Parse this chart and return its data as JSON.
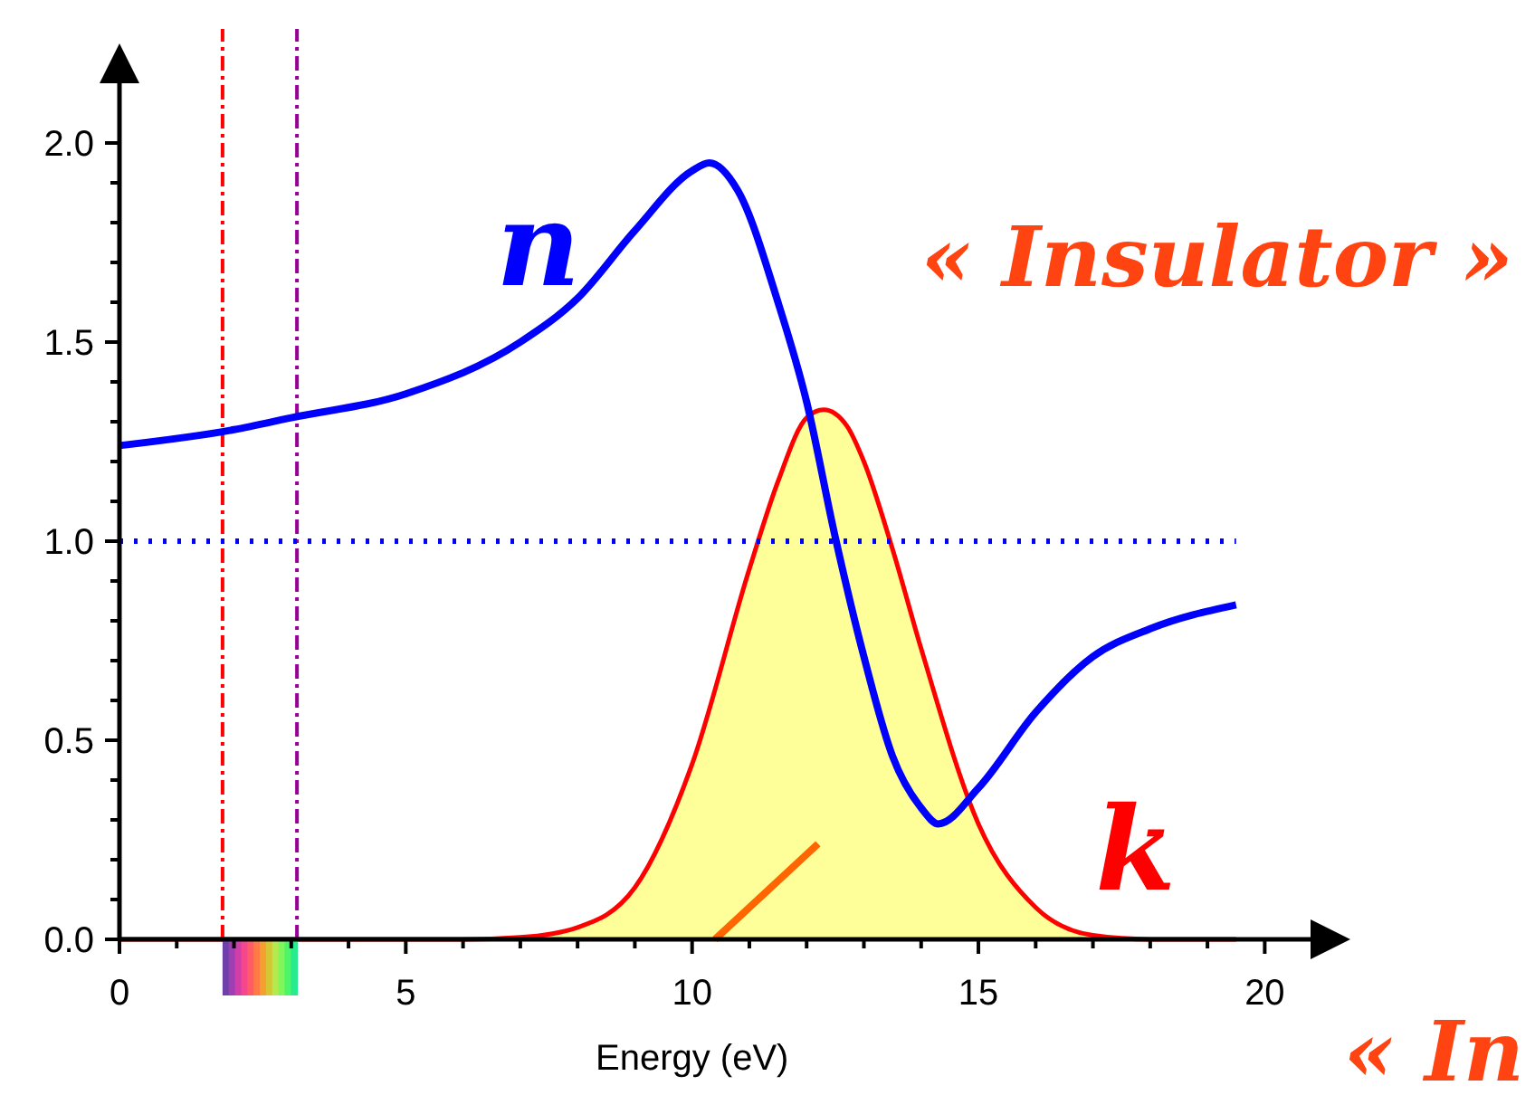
{
  "chart_data": {
    "type": "line",
    "xlabel": "Energy  (eV)",
    "xlim": [
      0,
      20.8
    ],
    "ylim": [
      0,
      2.15
    ],
    "xticks": [
      0,
      {
        "value": 1,
        "label": null
      },
      {
        "value": 2,
        "label": null
      },
      {
        "value": 3,
        "label": null
      },
      {
        "value": 4,
        "label": null
      },
      5,
      {
        "value": 6,
        "label": null
      },
      {
        "value": 7,
        "label": null
      },
      {
        "value": 8,
        "label": null
      },
      {
        "value": 9,
        "label": null
      },
      10,
      {
        "value": 11,
        "label": null
      },
      {
        "value": 12,
        "label": null
      },
      {
        "value": 13,
        "label": null
      },
      {
        "value": 14,
        "label": null
      },
      15,
      {
        "value": 16,
        "label": null
      },
      {
        "value": 17,
        "label": null
      },
      {
        "value": 18,
        "label": null
      },
      {
        "value": 19,
        "label": null
      },
      20
    ],
    "yticks": [
      {
        "value": 0,
        "label": "0.0"
      },
      {
        "value": 0.1,
        "label": null
      },
      {
        "value": 0.2,
        "label": null
      },
      {
        "value": 0.3,
        "label": null
      },
      {
        "value": 0.4,
        "label": null
      },
      0.5,
      {
        "value": 0.6,
        "label": null
      },
      {
        "value": 0.7,
        "label": null
      },
      {
        "value": 0.8,
        "label": null
      },
      {
        "value": 0.9,
        "label": null
      },
      {
        "value": 1,
        "label": "1.0"
      },
      {
        "value": 1.1,
        "label": null
      },
      {
        "value": 1.2,
        "label": null
      },
      {
        "value": 1.3,
        "label": null
      },
      {
        "value": 1.4,
        "label": null
      },
      1.5,
      {
        "value": 1.6,
        "label": null
      },
      {
        "value": 1.7,
        "label": null
      },
      {
        "value": 1.8,
        "label": null
      },
      {
        "value": 1.9,
        "label": null
      },
      {
        "value": 2,
        "label": "2.0"
      }
    ],
    "series": [
      {
        "name": "k",
        "type": "area",
        "color": "#ff0000",
        "x": [
          0,
          6,
          7,
          8,
          9,
          10,
          11,
          11.5,
          12,
          12.3,
          12.7,
          13,
          13.5,
          14,
          15,
          16,
          17,
          18,
          19.5
        ],
        "values": [
          0,
          0,
          0.005,
          0.03,
          0.13,
          0.44,
          0.93,
          1.15,
          1.31,
          1.33,
          1.29,
          1.2,
          0.98,
          0.73,
          0.29,
          0.08,
          0.01,
          0,
          0
        ]
      },
      {
        "name": "n",
        "type": "line",
        "color": "#0000ff",
        "x": [
          0,
          2,
          3,
          5,
          7,
          8,
          9,
          10,
          10.3,
          10.8,
          11.5,
          12,
          12.5,
          13,
          13.5,
          14,
          14.3,
          15,
          16,
          17,
          18,
          19.5
        ],
        "values": [
          1.24,
          1.28,
          1.31,
          1.37,
          1.5,
          1.61,
          1.78,
          1.93,
          1.95,
          1.88,
          1.6,
          1.35,
          1.01,
          0.71,
          0.46,
          0.33,
          0.29,
          0.38,
          0.57,
          0.71,
          0.78,
          0.84
        ]
      },
      {
        "type": "line",
        "color": "#ff6600",
        "x": [
          10.4,
          12.2
        ],
        "values": [
          0,
          0.24
        ]
      }
    ],
    "ref_lines": [
      {
        "axis": "x",
        "value": 1.8,
        "color": "#ff0000",
        "line_style": "dashdot"
      },
      {
        "axis": "x",
        "value": 3.1,
        "color": "#990099",
        "line_style": "dashdot"
      },
      {
        "axis": "y",
        "value": 1,
        "color": "#0000ff",
        "line_style": "dotted"
      }
    ],
    "annotations": [
      "« Insulator »",
      "« In"
    ]
  }
}
